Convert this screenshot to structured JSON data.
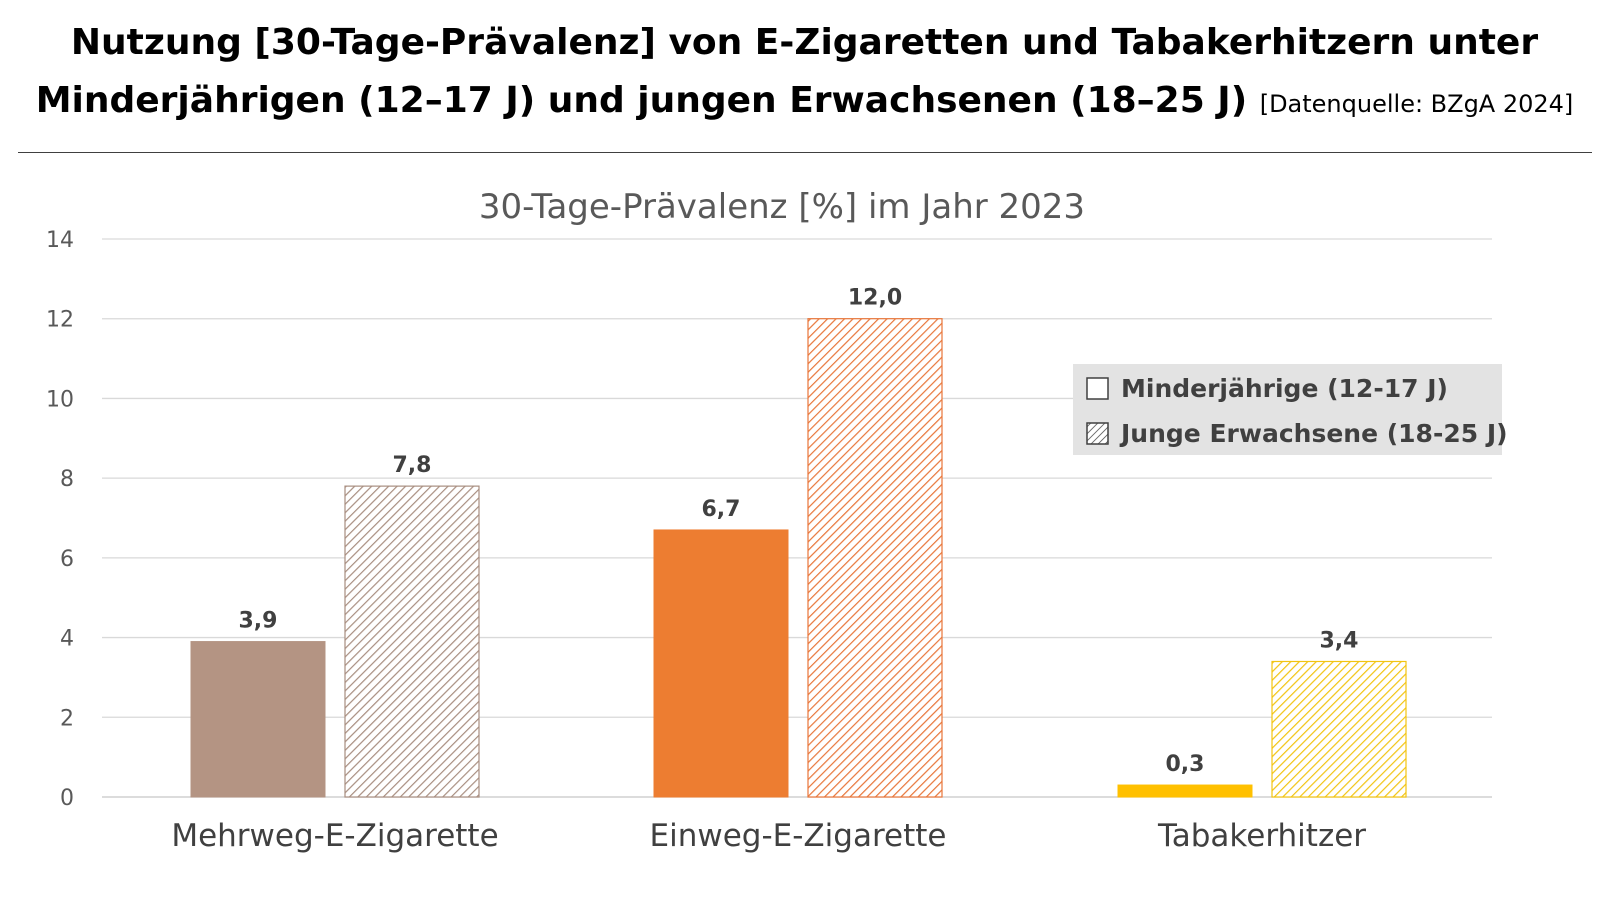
{
  "header": {
    "title_line1": "Nutzung [30-Tage-Prävalenz] von E-Zigaretten und Tabakerhitzern unter",
    "title_line2": "Minderjährigen (12–17 J) und jungen Erwachsenen (18–25 J)",
    "source": "[Datenquelle: BZgA 2024]"
  },
  "chart_data": {
    "type": "bar",
    "title": "30-Tage-Prävalenz [%] im Jahr 2023",
    "categories": [
      "Mehrweg-E-Zigarette",
      "Einweg-E-Zigarette",
      "Tabakerhitzer"
    ],
    "series": [
      {
        "name": "Minderjährige (12-17 J)",
        "values": [
          3.9,
          6.7,
          0.3
        ],
        "value_labels": [
          "3,9",
          "6,7",
          "0,3"
        ],
        "fill": "solid"
      },
      {
        "name": "Junge Erwachsene (18-25 J)",
        "values": [
          7.8,
          12.0,
          3.4
        ],
        "value_labels": [
          "7,8",
          "12,0",
          "3,4"
        ],
        "fill": "hatched"
      }
    ],
    "category_colors": [
      "#B49483",
      "#ED7D31",
      "#FFC000"
    ],
    "hatch_colors": [
      "#A88E80",
      "#E8763A",
      "#F2C411"
    ],
    "ylim": [
      0,
      14
    ],
    "yticks": [
      0,
      2,
      4,
      6,
      8,
      10,
      12,
      14
    ],
    "grid": true,
    "legend_position": "right"
  }
}
